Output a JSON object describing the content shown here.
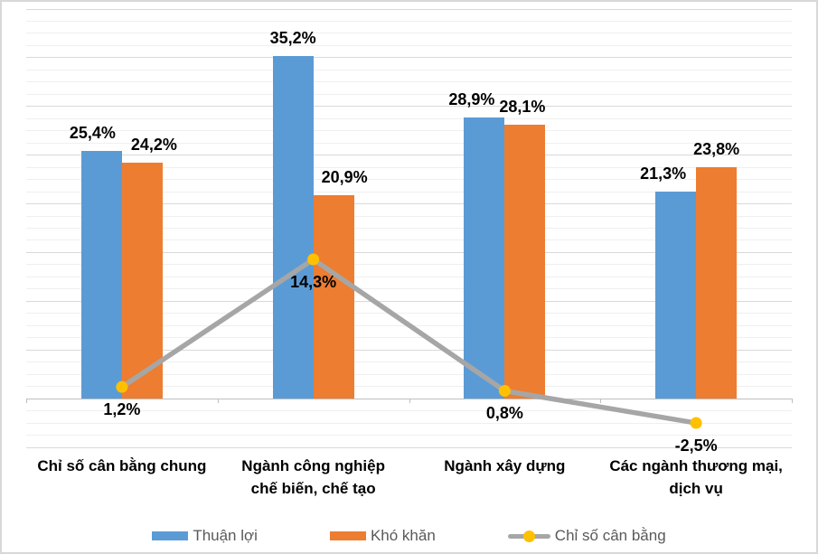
{
  "chart_data": {
    "type": "bar",
    "title": "",
    "xlabel": "",
    "ylabel": "",
    "categories": [
      "Chỉ số cân bằng chung",
      "Ngành công nghiệp\nchế biến, chế tạo",
      "Ngành xây dựng",
      "Các ngành thương mại,\ndịch vụ"
    ],
    "series": [
      {
        "name": "Thuận lợi",
        "type": "bar",
        "color": "#5B9BD5",
        "values": [
          25.4,
          35.2,
          28.9,
          21.3
        ],
        "labels": [
          "25,4%",
          "35,2%",
          "28,9%",
          "21,3%"
        ]
      },
      {
        "name": "Khó khăn",
        "type": "bar",
        "color": "#ED7D31",
        "values": [
          24.2,
          20.9,
          28.1,
          23.8
        ],
        "labels": [
          "24,2%",
          "20,9%",
          "28,1%",
          "23,8%"
        ]
      },
      {
        "name": "Chỉ số cân bằng",
        "type": "line",
        "color": "#A6A6A6",
        "marker_color": "#FFC000",
        "values": [
          1.2,
          14.3,
          0.8,
          -2.5
        ],
        "labels": [
          "1,2%",
          "14,3%",
          "0,8%",
          "-2,5%"
        ]
      }
    ],
    "ylim": [
      -5,
      40
    ],
    "grid": {
      "minor_step": 1.25,
      "major_step": 5,
      "vertical": false
    },
    "legend_position": "bottom"
  }
}
